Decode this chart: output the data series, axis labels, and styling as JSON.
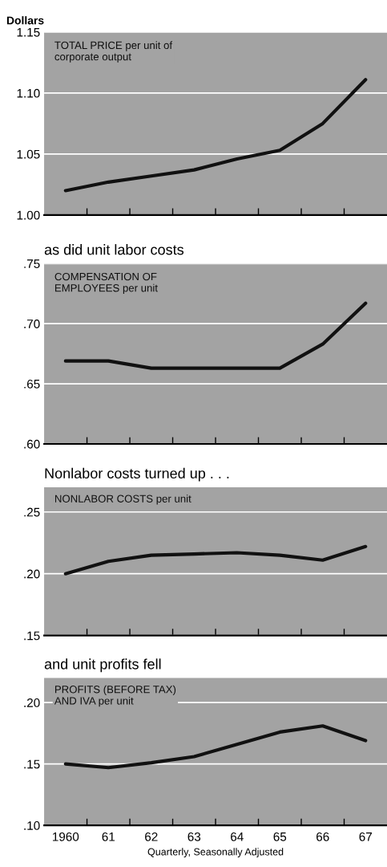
{
  "chart_data": [
    {
      "type": "line",
      "ylabel": "Dollars",
      "annotations": [
        "TOTAL PRICE per unit of\ncorporate output"
      ],
      "categories": [
        "1960",
        "61",
        "62",
        "63",
        "64",
        "65",
        "66",
        "67"
      ],
      "series": [
        {
          "color": "#111111",
          "values": [
            1.02,
            1.027,
            1.032,
            1.037,
            1.046,
            1.053,
            1.075,
            1.111
          ]
        }
      ],
      "ylim": [
        1.0,
        1.15
      ],
      "yticks": [
        {
          "value": 1.0,
          "label": "1.00"
        },
        {
          "value": 1.05,
          "label": "1.05"
        },
        {
          "value": 1.1,
          "label": "1.10"
        },
        {
          "value": 1.15,
          "label": "1.15"
        }
      ],
      "tick_labels": "y",
      "grid": "y"
    },
    {
      "type": "line",
      "title": "as did unit labor costs",
      "annotations": [
        "COMPENSATION OF\nEMPLOYEES per unit"
      ],
      "categories": [
        "1960",
        "61",
        "62",
        "63",
        "64",
        "65",
        "66",
        "67"
      ],
      "series": [
        {
          "color": "#111111",
          "values": [
            0.669,
            0.669,
            0.663,
            0.663,
            0.663,
            0.663,
            0.683,
            0.717
          ]
        }
      ],
      "ylim": [
        0.6,
        0.75
      ],
      "yticks": [
        {
          "value": 0.6,
          "label": ".60"
        },
        {
          "value": 0.65,
          "label": ".65"
        },
        {
          "value": 0.7,
          "label": ".70"
        },
        {
          "value": 0.75,
          "label": ".75"
        }
      ],
      "tick_labels": "y",
      "grid": "y"
    },
    {
      "type": "line",
      "title": "Nonlabor costs turned up . . .",
      "annotations": [
        "NONLABOR COSTS per unit"
      ],
      "categories": [
        "1960",
        "61",
        "62",
        "63",
        "64",
        "65",
        "66",
        "67"
      ],
      "series": [
        {
          "color": "#111111",
          "values": [
            0.2,
            0.21,
            0.215,
            0.216,
            0.217,
            0.215,
            0.211,
            0.222
          ]
        }
      ],
      "ylim": [
        0.15,
        0.27
      ],
      "yticks": [
        {
          "value": 0.15,
          "label": ".15"
        },
        {
          "value": 0.2,
          "label": ".20"
        },
        {
          "value": 0.25,
          "label": ".25"
        }
      ],
      "tick_labels": "y",
      "grid": "y"
    },
    {
      "type": "line",
      "title": "and unit profits fell",
      "xlabel": "Quarterly, Seasonally Adjusted",
      "annotations": [
        "PROFITS (BEFORE TAX)\nAND IVA per unit"
      ],
      "categories": [
        "1960",
        "61",
        "62",
        "63",
        "64",
        "65",
        "66",
        "67"
      ],
      "series": [
        {
          "color": "#111111",
          "values": [
            0.15,
            0.147,
            0.151,
            0.156,
            0.166,
            0.176,
            0.181,
            0.169
          ]
        }
      ],
      "ylim": [
        0.1,
        0.22
      ],
      "yticks": [
        {
          "value": 0.1,
          "label": ".10"
        },
        {
          "value": 0.15,
          "label": ".15"
        },
        {
          "value": 0.2,
          "label": ".20"
        }
      ],
      "grid": "y"
    }
  ]
}
